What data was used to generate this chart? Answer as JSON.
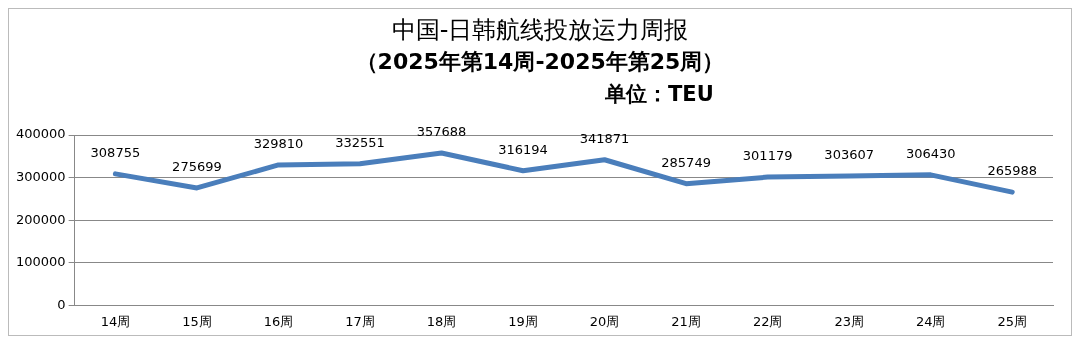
{
  "chart_data": {
    "type": "line",
    "title": "中国-日韩航线投放运力周报",
    "subtitle": "（2025年第14周-2025年第25周）",
    "annotations": [
      "单位：TEU"
    ],
    "categories": [
      "14周",
      "15周",
      "16周",
      "17周",
      "18周",
      "19周",
      "20周",
      "21周",
      "22周",
      "23周",
      "24周",
      "25周"
    ],
    "series": [
      {
        "color": "#4a7ebb",
        "values": [
          308755,
          275699,
          329810,
          332551,
          357688,
          316194,
          341871,
          285749,
          301179,
          303607,
          306430,
          265988
        ]
      }
    ],
    "ylim": [
      0,
      400000
    ],
    "yticks": [
      0,
      100000,
      200000,
      300000,
      400000
    ],
    "grid": "y",
    "legend": false,
    "marker": "none",
    "line_style": "solid",
    "data_labels": true
  }
}
